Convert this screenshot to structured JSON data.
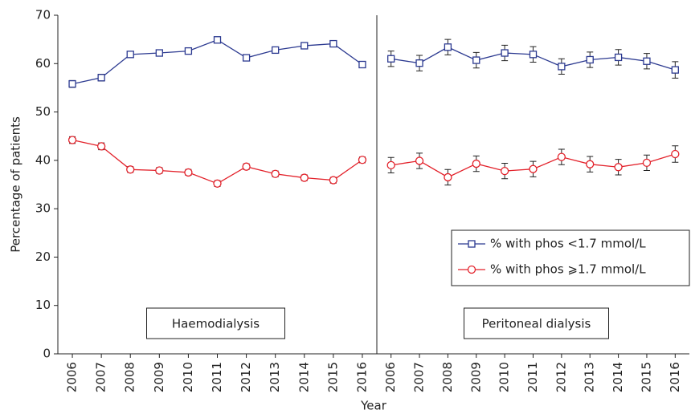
{
  "chart_data": {
    "type": "line",
    "y_label": "Percentage of patients",
    "x_label": "Year",
    "ylim": [
      0,
      70
    ],
    "yticks": [
      0,
      10,
      20,
      30,
      40,
      50,
      60,
      70
    ],
    "legend": "lower right",
    "panels": [
      {
        "label": "Haemodialysis",
        "categories": [
          "2006",
          "2007",
          "2008",
          "2009",
          "2010",
          "2011",
          "2012",
          "2013",
          "2014",
          "2015",
          "2016"
        ]
      },
      {
        "label": "Peritoneal dialysis",
        "categories": [
          "2006",
          "2007",
          "2008",
          "2009",
          "2010",
          "2011",
          "2012",
          "2013",
          "2014",
          "2015",
          "2016"
        ]
      }
    ],
    "series": [
      {
        "name": "% with phos <1.7 mmol/L",
        "color": "#2b3990",
        "marker": "square",
        "panels": [
          {
            "values": [
              55.8,
              57.1,
              61.9,
              62.2,
              62.6,
              64.9,
              61.2,
              62.8,
              63.7,
              64.1,
              59.8
            ],
            "errors": [
              0.7,
              0.7,
              0.6,
              0.6,
              0.6,
              0.6,
              0.6,
              0.6,
              0.6,
              0.6,
              0.6
            ]
          },
          {
            "values": [
              61.0,
              60.1,
              63.4,
              60.7,
              62.2,
              61.9,
              59.4,
              60.8,
              61.3,
              60.5,
              58.7
            ],
            "errors": [
              1.6,
              1.6,
              1.6,
              1.6,
              1.6,
              1.6,
              1.6,
              1.6,
              1.6,
              1.6,
              1.7
            ]
          }
        ]
      },
      {
        "name": "% with phos ⩾1.7 mmol/L",
        "color": "#e3222b",
        "marker": "circle",
        "panels": [
          {
            "values": [
              44.2,
              42.9,
              38.1,
              37.9,
              37.5,
              35.2,
              38.7,
              37.2,
              36.4,
              35.9,
              40.1
            ],
            "errors": [
              0.7,
              0.7,
              0.6,
              0.6,
              0.6,
              0.6,
              0.6,
              0.6,
              0.6,
              0.6,
              0.6
            ]
          },
          {
            "values": [
              39.0,
              39.9,
              36.5,
              39.3,
              37.8,
              38.2,
              40.7,
              39.2,
              38.6,
              39.5,
              41.3
            ],
            "errors": [
              1.6,
              1.6,
              1.6,
              1.6,
              1.6,
              1.6,
              1.6,
              1.6,
              1.6,
              1.6,
              1.7
            ]
          }
        ]
      }
    ]
  }
}
